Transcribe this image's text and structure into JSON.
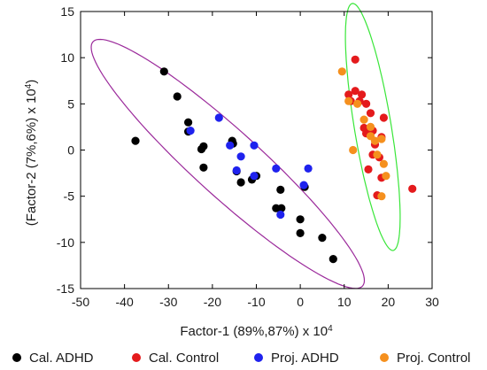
{
  "chart_data": {
    "type": "scatter",
    "xlabel": "Factor-1 (89%,87%) x 10",
    "xlabel_sup": "4",
    "ylabel": "(Factor-2 (7%,6%) x 10",
    "ylabel_sup": "4",
    "ylabel_tail": ")",
    "xlim": [
      -50,
      30
    ],
    "ylim": [
      -15,
      15
    ],
    "xticks": [
      -50,
      -40,
      -30,
      -20,
      -10,
      0,
      10,
      20,
      30
    ],
    "yticks": [
      -15,
      -10,
      -5,
      0,
      5,
      10,
      15
    ],
    "grid": false,
    "legend_position": "bottom",
    "series": [
      {
        "name": "Cal. ADHD",
        "color": "#000000",
        "points": [
          [
            -37.5,
            1
          ],
          [
            -31,
            8.5
          ],
          [
            -28,
            5.8
          ],
          [
            -25.5,
            3
          ],
          [
            -25.5,
            2
          ],
          [
            -22.5,
            0.1
          ],
          [
            -22,
            0.4
          ],
          [
            -22,
            -1.9
          ],
          [
            -15.5,
            1
          ],
          [
            -15.3,
            0.7
          ],
          [
            -14.5,
            -2.3
          ],
          [
            -13.5,
            -3.5
          ],
          [
            -11,
            -3.2
          ],
          [
            -10,
            -2.8
          ],
          [
            -5.5,
            -6.3
          ],
          [
            -4.5,
            -4.3
          ],
          [
            -4.3,
            -6.3
          ],
          [
            0,
            -7.5
          ],
          [
            0,
            -9
          ],
          [
            1,
            -4
          ],
          [
            5,
            -9.5
          ],
          [
            7.5,
            -11.8
          ]
        ]
      },
      {
        "name": "Cal. Control",
        "color": "#e41a1c",
        "points": [
          [
            12.5,
            9.8
          ],
          [
            11,
            6
          ],
          [
            12.5,
            6.4
          ],
          [
            14,
            6
          ],
          [
            11.5,
            5.3
          ],
          [
            13.5,
            5.3
          ],
          [
            15,
            5
          ],
          [
            16,
            4
          ],
          [
            14.5,
            2.4
          ],
          [
            16.5,
            2.1
          ],
          [
            15,
            1.8
          ],
          [
            18.5,
            1.4
          ],
          [
            17,
            0.6
          ],
          [
            16.5,
            -0.5
          ],
          [
            18,
            -0.8
          ],
          [
            19,
            3.5
          ],
          [
            15.5,
            -2.1
          ],
          [
            18.5,
            -3
          ],
          [
            17.5,
            -4.9
          ],
          [
            25.5,
            -4.2
          ]
        ]
      },
      {
        "name": "Proj. ADHD",
        "color": "#1f22ee",
        "points": [
          [
            -18.5,
            3.5
          ],
          [
            -25,
            2.1
          ],
          [
            -16,
            0.5
          ],
          [
            -10.5,
            0.5
          ],
          [
            -13.5,
            -0.7
          ],
          [
            -10.5,
            -2.8
          ],
          [
            -5.5,
            -2
          ],
          [
            1.8,
            -2
          ],
          [
            0.8,
            -3.8
          ],
          [
            -4.5,
            -7
          ],
          [
            -14.5,
            -2.2
          ]
        ]
      },
      {
        "name": "Proj. Control",
        "color": "#f5901e",
        "points": [
          [
            9.5,
            8.5
          ],
          [
            11,
            5.3
          ],
          [
            13,
            5
          ],
          [
            14.5,
            3.3
          ],
          [
            16,
            2.5
          ],
          [
            16,
            1.5
          ],
          [
            17,
            1
          ],
          [
            18.5,
            1.2
          ],
          [
            17.5,
            -0.5
          ],
          [
            19,
            -1.5
          ],
          [
            19.5,
            -2.8
          ],
          [
            18.5,
            -5
          ],
          [
            12,
            0
          ]
        ]
      }
    ],
    "ellipses": [
      {
        "name": "ADHD group ellipse",
        "color": "#9b2a9b",
        "center": [
          -16.5,
          -1.5
        ],
        "semi_axes": [
          33.6,
          4.4
        ],
        "angle_deg": -22.5
      },
      {
        "name": "Control group ellipse",
        "color": "#39e639",
        "center": [
          16.5,
          2.5
        ],
        "semi_axes": [
          14.2,
          4.0
        ],
        "angle_deg": 110.5
      }
    ]
  }
}
